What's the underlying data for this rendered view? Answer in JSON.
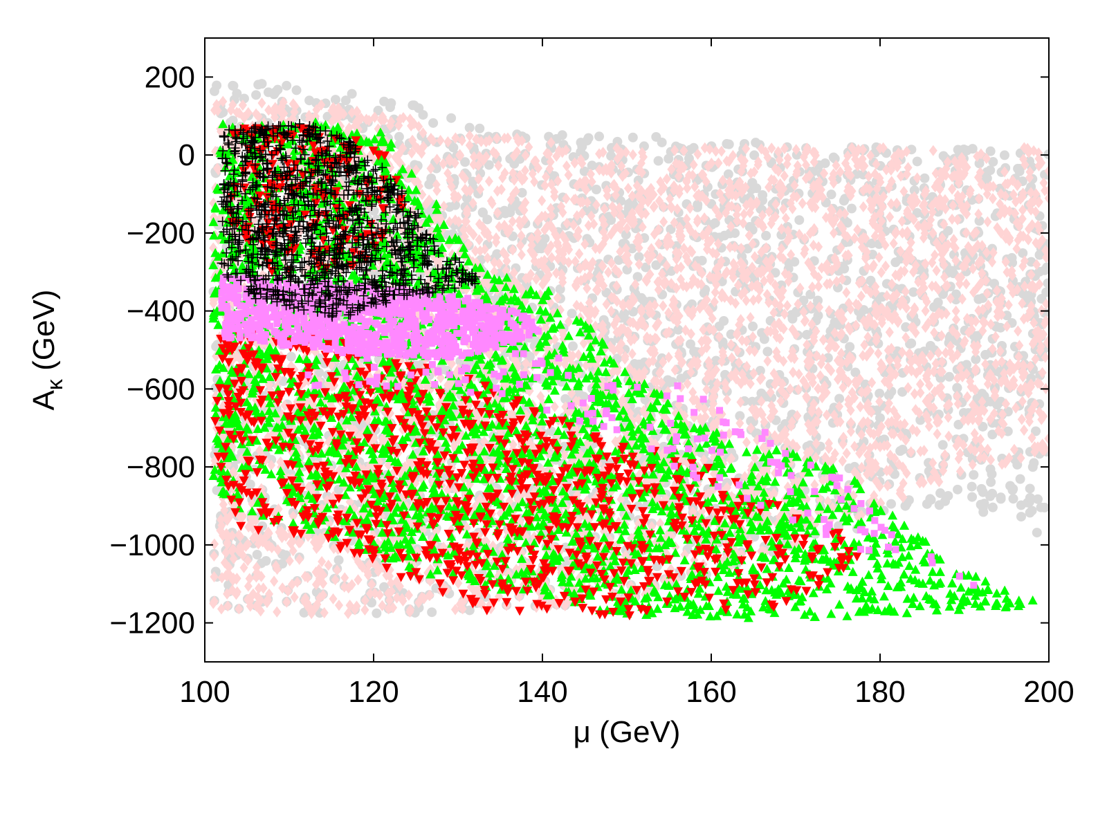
{
  "chart_data": {
    "type": "scatter",
    "title": "",
    "xlabel": "μ (GeV)",
    "ylabel_main": "A",
    "ylabel_sub": "κ",
    "ylabel_rest": " (GeV)",
    "xlim": [
      100,
      200
    ],
    "ylim": [
      -1300,
      300
    ],
    "xticks": [
      100,
      120,
      140,
      160,
      180,
      200
    ],
    "yticks": [
      200,
      0,
      -200,
      -400,
      -600,
      -800,
      -1000,
      -1200
    ],
    "xtick_labels": [
      "100",
      "120",
      "140",
      "160",
      "180",
      "200"
    ],
    "ytick_labels": [
      "200",
      "0",
      "−200",
      "−400",
      "−600",
      "−800",
      "−1000",
      "−1200"
    ],
    "grid": false,
    "legend": "none",
    "series": [
      {
        "marker": "circle",
        "color": "#d9d9d9",
        "regions": [
          {
            "poly": [
              [
                101,
                200
              ],
              [
                112,
                180
              ],
              [
                125,
                130
              ],
              [
                140,
                60
              ],
              [
                160,
                40
              ],
              [
                200,
                20
              ],
              [
                200,
                -980
              ],
              [
                190,
                -900
              ],
              [
                170,
                -1000
              ],
              [
                150,
                -1150
              ],
              [
                120,
                -1180
              ],
              [
                101,
                -1170
              ]
            ],
            "count": 2600
          }
        ]
      },
      {
        "marker": "diamond",
        "color": "#ffd4d4",
        "regions": [
          {
            "poly": [
              [
                101,
                150
              ],
              [
                120,
                120
              ],
              [
                130,
                60
              ],
              [
                150,
                20
              ],
              [
                200,
                20
              ],
              [
                200,
                -760
              ],
              [
                185,
                -860
              ],
              [
                170,
                -1000
              ],
              [
                150,
                -1150
              ],
              [
                120,
                -1180
              ],
              [
                101,
                -1180
              ]
            ],
            "count": 6500
          }
        ]
      },
      {
        "marker": "triangle-up",
        "color": "#00ff00",
        "regions": [
          {
            "poly": [
              [
                102,
                90
              ],
              [
                112,
                90
              ],
              [
                121,
                60
              ],
              [
                126,
                -80
              ],
              [
                133,
                -300
              ],
              [
                140,
                -330
              ],
              [
                146,
                -450
              ],
              [
                150,
                -560
              ],
              [
                155,
                -620
              ],
              [
                160,
                -700
              ],
              [
                175,
                -800
              ],
              [
                190,
                -1070
              ],
              [
                200,
                -1160
              ],
              [
                172,
                -1190
              ],
              [
                160,
                -1190
              ],
              [
                150,
                -1190
              ],
              [
                140,
                -1130
              ],
              [
                128,
                -1100
              ],
              [
                115,
                -980
              ],
              [
                105,
                -930
              ],
              [
                101,
                -860
              ],
              [
                101,
                -100
              ]
            ],
            "count": 3400
          }
        ]
      },
      {
        "marker": "triangle-down",
        "color": "#ff0000",
        "regions": [
          {
            "poly": [
              [
                102,
                -420
              ],
              [
                118,
                -480
              ],
              [
                130,
                -560
              ],
              [
                145,
                -700
              ],
              [
                160,
                -800
              ],
              [
                175,
                -960
              ],
              [
                178,
                -1040
              ],
              [
                168,
                -1160
              ],
              [
                150,
                -1180
              ],
              [
                135,
                -1180
              ],
              [
                126,
                -1110
              ],
              [
                115,
                -1000
              ],
              [
                104,
                -960
              ],
              [
                101,
                -740
              ]
            ],
            "count": 900
          },
          {
            "poly": [
              [
                103,
                80
              ],
              [
                113,
                80
              ],
              [
                121,
                20
              ],
              [
                124,
                -120
              ],
              [
                118,
                -300
              ],
              [
                108,
                -300
              ],
              [
                103,
                -200
              ]
            ],
            "count": 180
          }
        ]
      },
      {
        "marker": "square",
        "color": "#ff88ff",
        "regions": [
          {
            "poly": [
              [
                102,
                -310
              ],
              [
                118,
                -330
              ],
              [
                130,
                -360
              ],
              [
                138,
                -410
              ],
              [
                140,
                -460
              ],
              [
                130,
                -520
              ],
              [
                118,
                -510
              ],
              [
                102,
                -470
              ]
            ],
            "count": 900
          },
          {
            "poly": [
              [
                115,
                -480
              ],
              [
                140,
                -500
              ],
              [
                152,
                -560
              ],
              [
                158,
                -600
              ],
              [
                172,
                -760
              ],
              [
                180,
                -900
              ],
              [
                185,
                -1000
              ],
              [
                196,
                -1160
              ],
              [
                190,
                -1100
              ],
              [
                175,
                -1000
              ],
              [
                160,
                -860
              ],
              [
                150,
                -720
              ],
              [
                140,
                -660
              ],
              [
                125,
                -600
              ],
              [
                110,
                -600
              ]
            ],
            "count": 150
          }
        ]
      },
      {
        "marker": "plus",
        "color": "#000000",
        "regions": [
          {
            "poly": [
              [
                102,
                80
              ],
              [
                113,
                80
              ],
              [
                119,
                20
              ],
              [
                123,
                -80
              ],
              [
                128,
                -230
              ],
              [
                133,
                -330
              ],
              [
                125,
                -360
              ],
              [
                116,
                -420
              ],
              [
                106,
                -370
              ],
              [
                102,
                -300
              ]
            ],
            "count": 1100
          }
        ]
      }
    ]
  }
}
